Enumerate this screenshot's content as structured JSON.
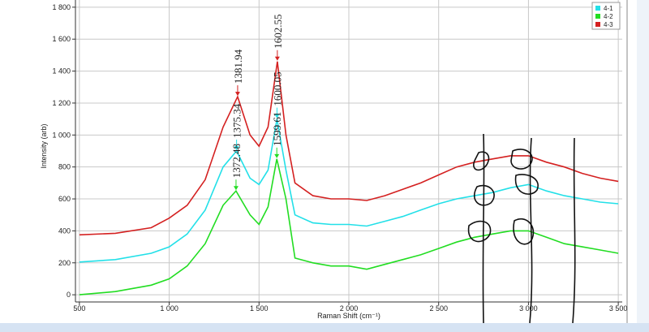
{
  "chart_data": {
    "type": "line",
    "x_label": "Raman Shift (cm⁻¹)",
    "y_label": "Intensity (arb)",
    "xlim": [
      478,
      3522
    ],
    "ylim": [
      -45,
      1845
    ],
    "xticks": [
      500,
      {
        "value": 1000,
        "label": "1 000"
      },
      {
        "value": 1500,
        "label": "1 500"
      },
      {
        "value": 2000,
        "label": "2 000"
      },
      {
        "value": 2500,
        "label": "2 500"
      },
      {
        "value": 3000,
        "label": "3 000"
      },
      {
        "value": 3500,
        "label": "3 500"
      }
    ],
    "yticks": [
      0,
      200,
      400,
      600,
      800,
      {
        "value": 1000,
        "label": "1 000"
      },
      {
        "value": 1200,
        "label": "1 200"
      },
      {
        "value": 1400,
        "label": "1 400"
      },
      {
        "value": 1600,
        "label": "1 600"
      },
      {
        "value": 1800,
        "label": "1 800"
      }
    ],
    "grid": true,
    "legend": "upper right",
    "series": [
      {
        "name": "4-1",
        "color": "#22e0e8",
        "x": [
          500,
          700,
          900,
          1000,
          1100,
          1200,
          1300,
          1375,
          1450,
          1500,
          1550,
          1600,
          1650,
          1700,
          1800,
          1900,
          2000,
          2100,
          2200,
          2300,
          2400,
          2500,
          2600,
          2700,
          2800,
          2900,
          3000,
          3100,
          3200,
          3300,
          3400,
          3500
        ],
        "values": [
          205,
          220,
          260,
          300,
          380,
          530,
          800,
          900,
          730,
          690,
          780,
          1100,
          780,
          500,
          450,
          440,
          440,
          430,
          460,
          490,
          530,
          570,
          600,
          620,
          640,
          670,
          690,
          650,
          620,
          600,
          580,
          570
        ]
      },
      {
        "name": "4-2",
        "color": "#22dd22",
        "x": [
          500,
          700,
          900,
          1000,
          1100,
          1200,
          1300,
          1372,
          1450,
          1500,
          1550,
          1599,
          1650,
          1700,
          1800,
          1900,
          2000,
          2100,
          2200,
          2300,
          2400,
          2500,
          2600,
          2700,
          2800,
          2900,
          3000,
          3100,
          3200,
          3300,
          3400,
          3500
        ],
        "values": [
          0,
          20,
          60,
          100,
          180,
          320,
          560,
          650,
          500,
          440,
          550,
          850,
          600,
          230,
          200,
          180,
          180,
          160,
          190,
          220,
          250,
          290,
          330,
          360,
          380,
          400,
          400,
          360,
          320,
          300,
          280,
          260
        ]
      },
      {
        "name": "4-3",
        "color": "#d42020",
        "x": [
          500,
          700,
          900,
          1000,
          1100,
          1200,
          1300,
          1381,
          1450,
          1500,
          1550,
          1602,
          1650,
          1700,
          1800,
          1900,
          2000,
          2100,
          2200,
          2300,
          2400,
          2500,
          2600,
          2700,
          2800,
          2900,
          3000,
          3100,
          3200,
          3300,
          3400,
          3500
        ],
        "values": [
          375,
          385,
          420,
          480,
          560,
          720,
          1050,
          1240,
          1000,
          930,
          1050,
          1460,
          1000,
          700,
          620,
          600,
          600,
          590,
          620,
          660,
          700,
          750,
          800,
          830,
          850,
          870,
          870,
          830,
          800,
          760,
          730,
          710
        ]
      }
    ],
    "annotations": [
      {
        "text": "1381.94",
        "series": 2,
        "index": 7
      },
      {
        "text": "1602.55",
        "series": 2,
        "index": 11
      },
      {
        "text": "1375.34",
        "series": 0,
        "index": 7
      },
      {
        "text": "1600.05",
        "series": 0,
        "index": 11
      },
      {
        "text": "1372.48",
        "series": 1,
        "index": 7
      },
      {
        "text": "1599.61",
        "series": 1,
        "index": 11
      }
    ]
  }
}
